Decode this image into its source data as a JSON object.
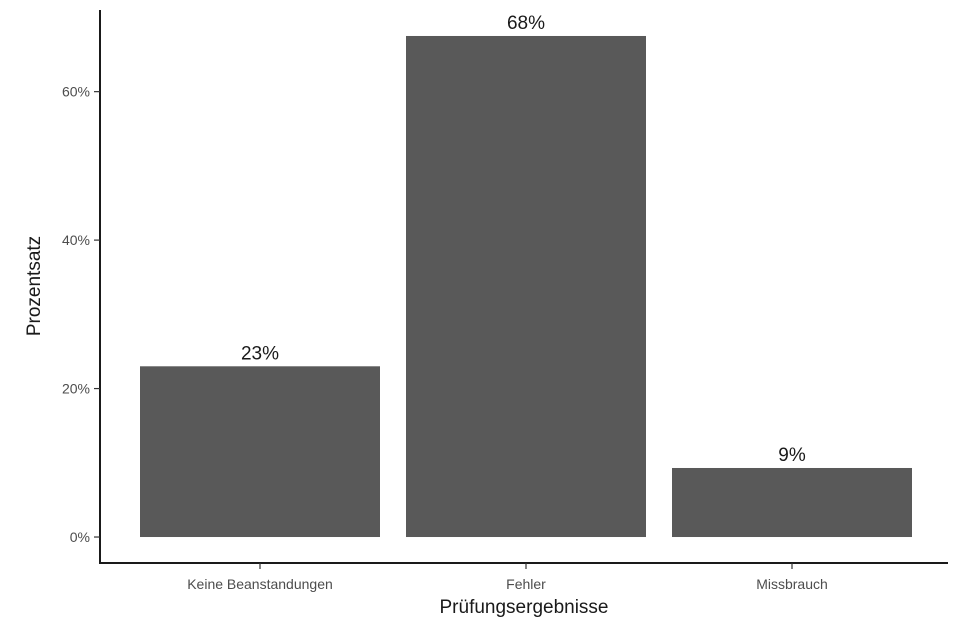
{
  "chart_data": {
    "type": "bar",
    "categories": [
      "Keine Beanstandungen",
      "Fehler",
      "Missbrauch"
    ],
    "values": [
      23,
      67.5,
      9.3
    ],
    "data_labels": [
      "23%",
      "68%",
      "9%"
    ],
    "title": "",
    "xlabel": "Prüfungsergebnisse",
    "ylabel": "Prozentsatz",
    "ylim": [
      -3.5,
      71
    ],
    "yticks": [
      0,
      20,
      40,
      60
    ],
    "ytick_labels": [
      "0%",
      "20%",
      "40%",
      "60%"
    ],
    "grid": false,
    "legend": "none",
    "bar_color": "#595959"
  }
}
